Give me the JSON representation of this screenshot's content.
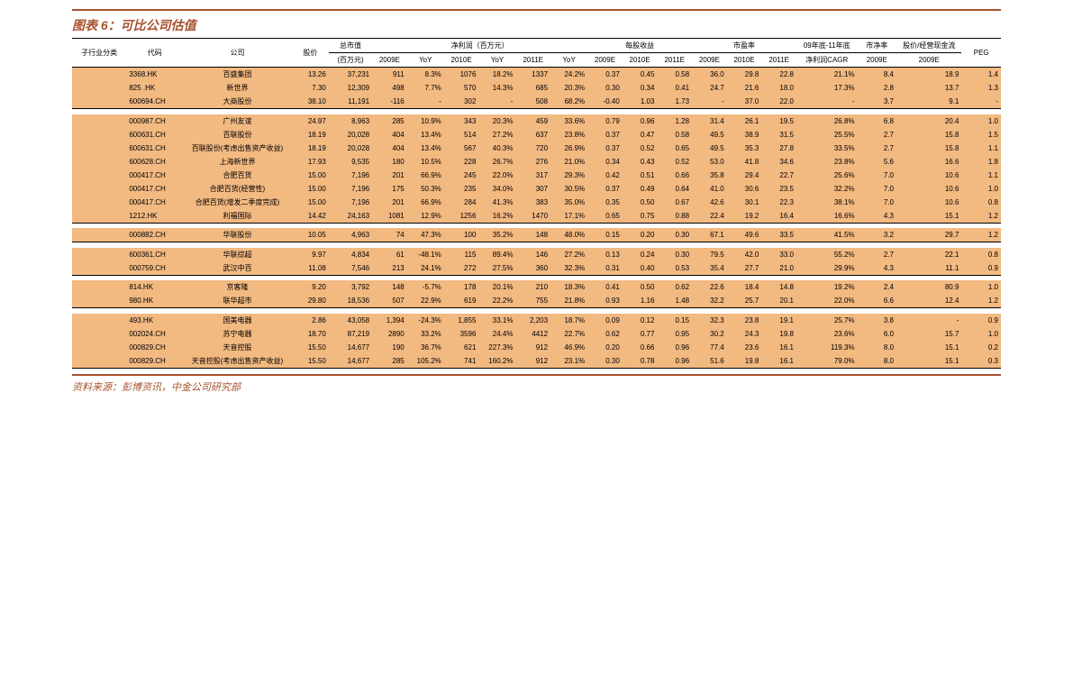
{
  "title": "图表 6：可比公司估值",
  "footer": "资料来源：彭博资讯，中金公司研究部",
  "colors": {
    "accent": "#a8512e",
    "highlight": "#f2b981",
    "border": "#000000"
  },
  "headers": {
    "row1": {
      "sector": "子行业分类",
      "code": "代码",
      "company": "公司",
      "price": "股价",
      "mktcap": "总市值",
      "netprofit": "净利润（百万元）",
      "eps": "每股收益",
      "pe": "市盈率",
      "growth": "09年底-11年底",
      "pb": "市净率",
      "pcf": "股价/经营现金流",
      "peg": "PEG"
    },
    "row2": {
      "mktcap_unit": "(百万元)",
      "np_cols": [
        "2009E",
        "YoY",
        "2010E",
        "YoY",
        "2011E",
        "YoY"
      ],
      "eps_cols": [
        "2009E",
        "2010E",
        "2011E"
      ],
      "pe_cols": [
        "2009E",
        "2010E",
        "2011E"
      ],
      "cagr": "净利润CAGR",
      "pb_col": "2009E",
      "pcf_col": "2009E"
    }
  },
  "groups": [
    {
      "sector": "",
      "rows": [
        {
          "hl": true,
          "code": "3368.HK",
          "name": "百盛集团",
          "price": "13.26",
          "mktcap": "37,231",
          "np09": "911",
          "yoy09": "8.3%",
          "np10": "1076",
          "yoy10": "18.2%",
          "np11": "1337",
          "yoy11": "24.2%",
          "eps09": "0.37",
          "eps10": "0.45",
          "eps11": "0.58",
          "pe09": "36.0",
          "pe10": "29.8",
          "pe11": "22.8",
          "cagr": "21.1%",
          "pb": "8.4",
          "pcf": "18.9",
          "peg": "1.4"
        },
        {
          "hl": true,
          "code": "825 .HK",
          "name": "新世界",
          "price": "7.30",
          "mktcap": "12,309",
          "np09": "498",
          "yoy09": "7.7%",
          "np10": "570",
          "yoy10": "14.3%",
          "np11": "685",
          "yoy11": "20.3%",
          "eps09": "0.30",
          "eps10": "0.34",
          "eps11": "0.41",
          "pe09": "24.7",
          "pe10": "21.6",
          "pe11": "18.0",
          "cagr": "17.3%",
          "pb": "2.8",
          "pcf": "13.7",
          "peg": "1.3"
        },
        {
          "hl": true,
          "code": "600694.CH",
          "name": "大商股份",
          "price": "38.10",
          "mktcap": "11,191",
          "np09": "-116",
          "yoy09": "-",
          "np10": "302",
          "yoy10": "-",
          "np11": "508",
          "yoy11": "68.2%",
          "eps09": "-0.40",
          "eps10": "1.03",
          "eps11": "1.73",
          "pe09": "-",
          "pe10": "37.0",
          "pe11": "22.0",
          "cagr": "-",
          "pb": "3.7",
          "pcf": "9.1",
          "peg": "-"
        }
      ]
    },
    {
      "sector": "",
      "rows": [
        {
          "hl": true,
          "code": "000987.CH",
          "name": "广州友谊",
          "price": "24.97",
          "mktcap": "8,963",
          "np09": "285",
          "yoy09": "10.9%",
          "np10": "343",
          "yoy10": "20.3%",
          "np11": "459",
          "yoy11": "33.6%",
          "eps09": "0.79",
          "eps10": "0.96",
          "eps11": "1.28",
          "pe09": "31.4",
          "pe10": "26.1",
          "pe11": "19.5",
          "cagr": "26.8%",
          "pb": "6.8",
          "pcf": "20.4",
          "peg": "1.0"
        },
        {
          "hl": true,
          "code": "600631.CH",
          "name": "百联股份",
          "price": "18.19",
          "mktcap": "20,028",
          "np09": "404",
          "yoy09": "13.4%",
          "np10": "514",
          "yoy10": "27.2%",
          "np11": "637",
          "yoy11": "23.8%",
          "eps09": "0.37",
          "eps10": "0.47",
          "eps11": "0.58",
          "pe09": "49.5",
          "pe10": "38.9",
          "pe11": "31.5",
          "cagr": "25.5%",
          "pb": "2.7",
          "pcf": "15.8",
          "peg": "1.5"
        },
        {
          "hl": true,
          "code": "600631.CH",
          "name": "百联股份(考虑出售资产收益)",
          "price": "18.19",
          "mktcap": "20,028",
          "np09": "404",
          "yoy09": "13.4%",
          "np10": "567",
          "yoy10": "40.3%",
          "np11": "720",
          "yoy11": "26.9%",
          "eps09": "0.37",
          "eps10": "0.52",
          "eps11": "0.65",
          "pe09": "49.5",
          "pe10": "35.3",
          "pe11": "27.8",
          "cagr": "33.5%",
          "pb": "2.7",
          "pcf": "15.8",
          "peg": "1.1"
        },
        {
          "hl": true,
          "code": "600628.CH",
          "name": "上海新世界",
          "price": "17.93",
          "mktcap": "9,535",
          "np09": "180",
          "yoy09": "10.5%",
          "np10": "228",
          "yoy10": "26.7%",
          "np11": "276",
          "yoy11": "21.0%",
          "eps09": "0.34",
          "eps10": "0.43",
          "eps11": "0.52",
          "pe09": "53.0",
          "pe10": "41.8",
          "pe11": "34.6",
          "cagr": "23.8%",
          "pb": "5.6",
          "pcf": "16.6",
          "peg": "1.8"
        },
        {
          "hl": true,
          "code": "000417.CH",
          "name": "合肥百货",
          "price": "15.00",
          "mktcap": "7,196",
          "np09": "201",
          "yoy09": "66.9%",
          "np10": "245",
          "yoy10": "22.0%",
          "np11": "317",
          "yoy11": "29.3%",
          "eps09": "0.42",
          "eps10": "0.51",
          "eps11": "0.66",
          "pe09": "35.8",
          "pe10": "29.4",
          "pe11": "22.7",
          "cagr": "25.6%",
          "pb": "7.0",
          "pcf": "10.6",
          "peg": "1.1"
        },
        {
          "hl": true,
          "code": "000417.CH",
          "name": "合肥百货(经营性)",
          "price": "15.00",
          "mktcap": "7,196",
          "np09": "175",
          "yoy09": "50.3%",
          "np10": "235",
          "yoy10": "34.0%",
          "np11": "307",
          "yoy11": "30.5%",
          "eps09": "0.37",
          "eps10": "0.49",
          "eps11": "0.64",
          "pe09": "41.0",
          "pe10": "30.6",
          "pe11": "23.5",
          "cagr": "32.2%",
          "pb": "7.0",
          "pcf": "10.6",
          "peg": "1.0"
        },
        {
          "hl": true,
          "code": "000417.CH",
          "name": "合肥百货(增发二季度完成)",
          "price": "15.00",
          "mktcap": "7,196",
          "np09": "201",
          "yoy09": "66.9%",
          "np10": "284",
          "yoy10": "41.3%",
          "np11": "383",
          "yoy11": "35.0%",
          "eps09": "0.35",
          "eps10": "0.50",
          "eps11": "0.67",
          "pe09": "42.6",
          "pe10": "30.1",
          "pe11": "22.3",
          "cagr": "38.1%",
          "pb": "7.0",
          "pcf": "10.6",
          "peg": "0.8"
        },
        {
          "hl": true,
          "code": "1212.HK",
          "name": "利福国际",
          "price": "14.42",
          "mktcap": "24,163",
          "np09": "1081",
          "yoy09": "12.9%",
          "np10": "1256",
          "yoy10": "16.2%",
          "np11": "1470",
          "yoy11": "17.1%",
          "eps09": "0.65",
          "eps10": "0.75",
          "eps11": "0.88",
          "pe09": "22.4",
          "pe10": "19.2",
          "pe11": "16.4",
          "cagr": "16.6%",
          "pb": "4.3",
          "pcf": "15.1",
          "peg": "1.2"
        }
      ]
    },
    {
      "sector": "",
      "rows": [
        {
          "hl": true,
          "code": "000882.CH",
          "name": "华联股份",
          "price": "10.05",
          "mktcap": "4,963",
          "np09": "74",
          "yoy09": "47.3%",
          "np10": "100",
          "yoy10": "35.2%",
          "np11": "148",
          "yoy11": "48.0%",
          "eps09": "0.15",
          "eps10": "0.20",
          "eps11": "0.30",
          "pe09": "67.1",
          "pe10": "49.6",
          "pe11": "33.5",
          "cagr": "41.5%",
          "pb": "3.2",
          "pcf": "29.7",
          "peg": "1.2"
        }
      ]
    },
    {
      "sector": "",
      "rows": [
        {
          "hl": true,
          "code": "600361.CH",
          "name": "华联综超",
          "price": "9.97",
          "mktcap": "4,834",
          "np09": "61",
          "yoy09": "-48.1%",
          "np10": "115",
          "yoy10": "89.4%",
          "np11": "146",
          "yoy11": "27.2%",
          "eps09": "0.13",
          "eps10": "0.24",
          "eps11": "0.30",
          "pe09": "79.5",
          "pe10": "42.0",
          "pe11": "33.0",
          "cagr": "55.2%",
          "pb": "2.7",
          "pcf": "22.1",
          "peg": "0.8"
        },
        {
          "hl": true,
          "code": "000759.CH",
          "name": "武汉中百",
          "price": "11.08",
          "mktcap": "7,546",
          "np09": "213",
          "yoy09": "24.1%",
          "np10": "272",
          "yoy10": "27.5%",
          "np11": "360",
          "yoy11": "32.3%",
          "eps09": "0.31",
          "eps10": "0.40",
          "eps11": "0.53",
          "pe09": "35.4",
          "pe10": "27.7",
          "pe11": "21.0",
          "cagr": "29.9%",
          "pb": "4.3",
          "pcf": "11.1",
          "peg": "0.9"
        }
      ]
    },
    {
      "sector": "",
      "rows": [
        {
          "hl": true,
          "code": "814.HK",
          "name": "京客隆",
          "price": "9.20",
          "mktcap": "3,792",
          "np09": "148",
          "yoy09": "-5.7%",
          "np10": "178",
          "yoy10": "20.1%",
          "np11": "210",
          "yoy11": "18.3%",
          "eps09": "0.41",
          "eps10": "0.50",
          "eps11": "0.62",
          "pe09": "22.6",
          "pe10": "18.4",
          "pe11": "14.8",
          "cagr": "19.2%",
          "pb": "2.4",
          "pcf": "80.9",
          "peg": "1.0"
        },
        {
          "hl": true,
          "code": "980.HK",
          "name": "联华超市",
          "price": "29.80",
          "mktcap": "18,536",
          "np09": "507",
          "yoy09": "22.9%",
          "np10": "619",
          "yoy10": "22.2%",
          "np11": "755",
          "yoy11": "21.8%",
          "eps09": "0.93",
          "eps10": "1.16",
          "eps11": "1.48",
          "pe09": "32.2",
          "pe10": "25.7",
          "pe11": "20.1",
          "cagr": "22.0%",
          "pb": "6.6",
          "pcf": "12.4",
          "peg": "1.2"
        }
      ]
    },
    {
      "sector": "",
      "rows": [
        {
          "hl": true,
          "code": "493.HK",
          "name": "国美电器",
          "price": "2.86",
          "mktcap": "43,058",
          "np09": "1,394",
          "yoy09": "-24.3%",
          "np10": "1,855",
          "yoy10": "33.1%",
          "np11": "2,203",
          "yoy11": "18.7%",
          "eps09": "0.09",
          "eps10": "0.12",
          "eps11": "0.15",
          "pe09": "32.3",
          "pe10": "23.8",
          "pe11": "19.1",
          "cagr": "25.7%",
          "pb": "3.8",
          "pcf": "-",
          "peg": "0.9"
        },
        {
          "hl": true,
          "code": "002024.CH",
          "name": "苏宁电器",
          "price": "18.70",
          "mktcap": "87,219",
          "np09": "2890",
          "yoy09": "33.2%",
          "np10": "3596",
          "yoy10": "24.4%",
          "np11": "4412",
          "yoy11": "22.7%",
          "eps09": "0.62",
          "eps10": "0.77",
          "eps11": "0.95",
          "pe09": "30.2",
          "pe10": "24.3",
          "pe11": "19.8",
          "cagr": "23.6%",
          "pb": "6.0",
          "pcf": "15.7",
          "peg": "1.0"
        },
        {
          "hl": true,
          "code": "000829.CH",
          "name": "天音控股",
          "price": "15.50",
          "mktcap": "14,677",
          "np09": "190",
          "yoy09": "36.7%",
          "np10": "621",
          "yoy10": "227.3%",
          "np11": "912",
          "yoy11": "46.9%",
          "eps09": "0.20",
          "eps10": "0.66",
          "eps11": "0.96",
          "pe09": "77.4",
          "pe10": "23.6",
          "pe11": "16.1",
          "cagr": "119.3%",
          "pb": "8.0",
          "pcf": "15.1",
          "peg": "0.2"
        },
        {
          "hl": true,
          "code": "000829.CH",
          "name": "天音控股(考虑出售资产收益)",
          "price": "15.50",
          "mktcap": "14,677",
          "np09": "285",
          "yoy09": "105.2%",
          "np10": "741",
          "yoy10": "160.2%",
          "np11": "912",
          "yoy11": "23.1%",
          "eps09": "0.30",
          "eps10": "0.78",
          "eps11": "0.96",
          "pe09": "51.6",
          "pe10": "19.8",
          "pe11": "16.1",
          "cagr": "79.0%",
          "pb": "8.0",
          "pcf": "15.1",
          "peg": "0.3"
        }
      ]
    }
  ]
}
